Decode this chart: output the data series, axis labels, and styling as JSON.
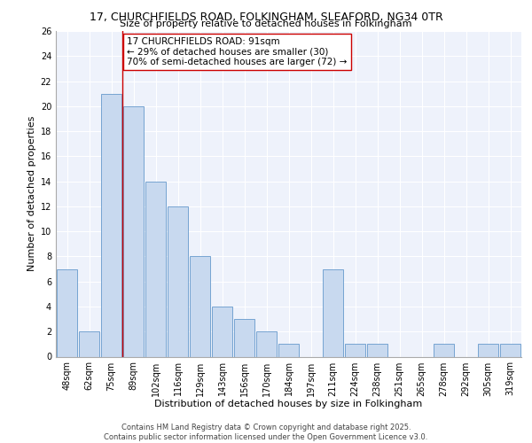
{
  "title_line1": "17, CHURCHFIELDS ROAD, FOLKINGHAM, SLEAFORD, NG34 0TR",
  "title_line2": "Size of property relative to detached houses in Folkingham",
  "xlabel": "Distribution of detached houses by size in Folkingham",
  "ylabel": "Number of detached properties",
  "bar_color": "#c8d9ef",
  "bar_edgecolor": "#6699cc",
  "categories": [
    "48sqm",
    "62sqm",
    "75sqm",
    "89sqm",
    "102sqm",
    "116sqm",
    "129sqm",
    "143sqm",
    "156sqm",
    "170sqm",
    "184sqm",
    "197sqm",
    "211sqm",
    "224sqm",
    "238sqm",
    "251sqm",
    "265sqm",
    "278sqm",
    "292sqm",
    "305sqm",
    "319sqm"
  ],
  "values": [
    7,
    2,
    21,
    20,
    14,
    12,
    8,
    4,
    3,
    2,
    1,
    0,
    7,
    1,
    1,
    0,
    0,
    1,
    0,
    1,
    1
  ],
  "ylim": [
    0,
    26
  ],
  "yticks": [
    0,
    2,
    4,
    6,
    8,
    10,
    12,
    14,
    16,
    18,
    20,
    22,
    24,
    26
  ],
  "vline_x": 2.5,
  "vline_color": "#cc0000",
  "annotation_text": "17 CHURCHFIELDS ROAD: 91sqm\n← 29% of detached houses are smaller (30)\n70% of semi-detached houses are larger (72) →",
  "annotation_box_color": "#ffffff",
  "annotation_box_edgecolor": "#cc0000",
  "footer_text": "Contains HM Land Registry data © Crown copyright and database right 2025.\nContains public sector information licensed under the Open Government Licence v3.0.",
  "background_color": "#eef2fb",
  "grid_color": "#ffffff",
  "title_fontsize": 9,
  "subtitle_fontsize": 8,
  "axis_label_fontsize": 8,
  "tick_fontsize": 7,
  "annotation_fontsize": 7.5,
  "footer_fontsize": 6
}
